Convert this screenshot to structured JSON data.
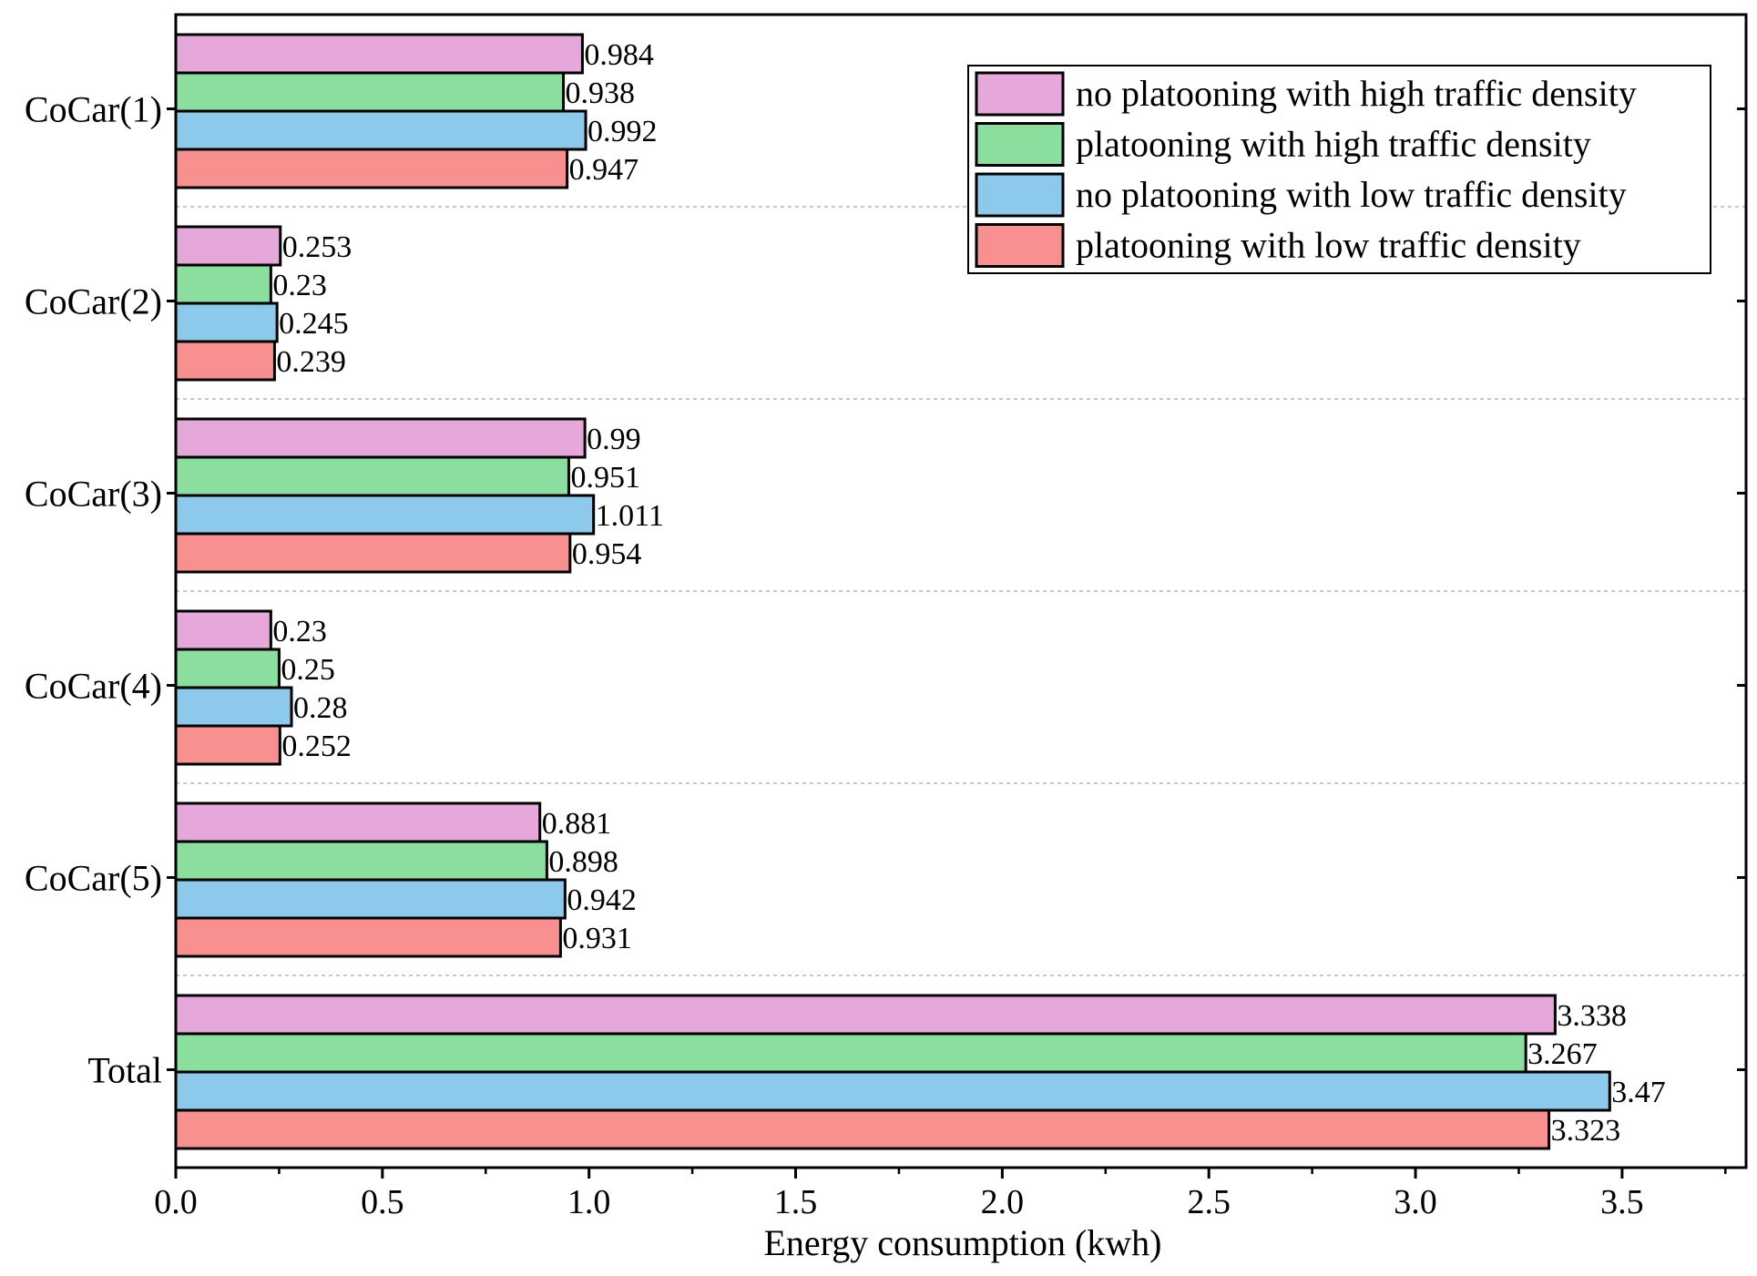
{
  "chart_data": {
    "type": "bar",
    "orientation": "horizontal",
    "xlabel": "Energy consumption (kwh)",
    "ylabel": "",
    "xlim": [
      0.0,
      3.8
    ],
    "xticks": [
      "0.0",
      "0.5",
      "1.0",
      "1.5",
      "2.0",
      "2.5",
      "3.0",
      "3.5"
    ],
    "categories": [
      "CoCar(1)",
      "CoCar(2)",
      "CoCar(3)",
      "CoCar(4)",
      "CoCar(5)",
      "Total"
    ],
    "series": [
      {
        "name": "no platooning with high traffic density",
        "color": "#e6a8da",
        "values": [
          0.984,
          0.253,
          0.99,
          0.23,
          0.881,
          3.338
        ],
        "labels": [
          "0.984",
          "0.253",
          "0.99",
          "0.23",
          "0.881",
          "3.338"
        ]
      },
      {
        "name": "platooning with high traffic density",
        "color": "#8adf9f",
        "values": [
          0.938,
          0.23,
          0.951,
          0.25,
          0.898,
          3.267
        ],
        "labels": [
          "0.938",
          "0.23",
          "0.951",
          "0.25",
          "0.898",
          "3.267"
        ]
      },
      {
        "name": "no platooning with low traffic density",
        "color": "#8cc9ea",
        "values": [
          0.992,
          0.245,
          1.011,
          0.28,
          0.942,
          3.47
        ],
        "labels": [
          "0.992",
          "0.245",
          "1.011",
          "0.28",
          "0.942",
          "3.47"
        ]
      },
      {
        "name": "platooning with low traffic density",
        "color": "#f89090",
        "values": [
          0.947,
          0.239,
          0.954,
          0.252,
          0.931,
          3.323
        ],
        "labels": [
          "0.947",
          "0.239",
          "0.954",
          "0.252",
          "0.931",
          "3.323"
        ]
      }
    ],
    "legend_position": "top-right",
    "grid": "dashed separators between categories"
  }
}
